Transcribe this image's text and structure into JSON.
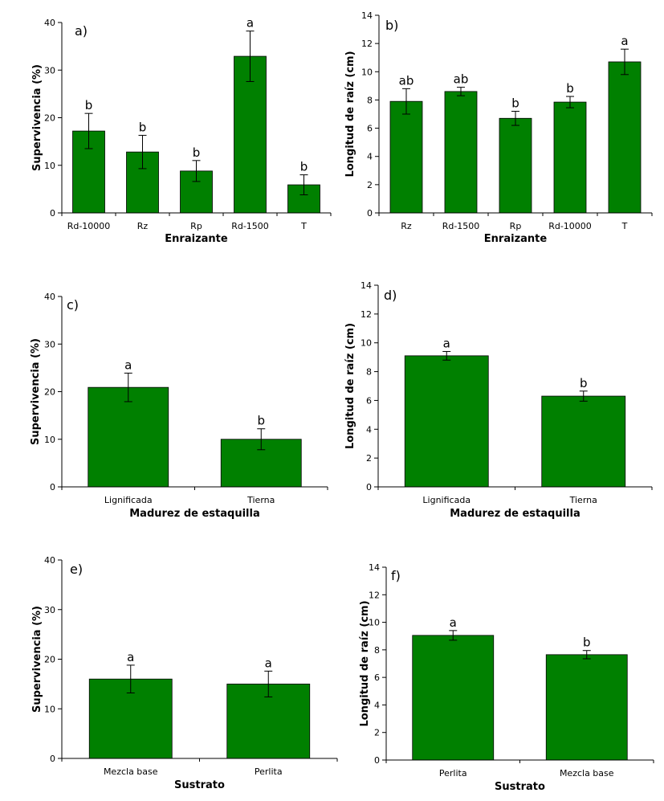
{
  "colors": {
    "bar": "#008000",
    "axis": "#000000"
  },
  "chart_data": [
    {
      "panel": "a)",
      "type": "bar",
      "categories": [
        "Rd-10000",
        "Rz",
        "Rp",
        "Rd-1500",
        "T"
      ],
      "values": [
        17.2,
        12.8,
        8.8,
        32.9,
        5.9
      ],
      "errors": [
        3.7,
        3.5,
        2.2,
        5.3,
        2.1
      ],
      "significance": [
        "b",
        "b",
        "b",
        "a",
        "b"
      ],
      "xlabel": "Enraizante",
      "ylabel": "Supervivencia (%)",
      "ylim": [
        0,
        40
      ],
      "yticks": [
        0,
        10,
        20,
        30,
        40
      ]
    },
    {
      "panel": "b)",
      "type": "bar",
      "categories": [
        "Rz",
        "Rd-1500",
        "Rp",
        "Rd-10000",
        "T"
      ],
      "values": [
        7.9,
        8.6,
        6.7,
        7.85,
        10.7
      ],
      "errors": [
        0.9,
        0.3,
        0.5,
        0.4,
        0.9
      ],
      "significance": [
        "ab",
        "ab",
        "b",
        "b",
        "a"
      ],
      "xlabel": "Enraizante",
      "ylabel": "Longitud de raíz (cm)",
      "ylim": [
        0,
        14
      ],
      "yticks": [
        0,
        2,
        4,
        6,
        8,
        10,
        12,
        14
      ]
    },
    {
      "panel": "c)",
      "type": "bar",
      "categories": [
        "Lignificada",
        "Tierna"
      ],
      "values": [
        20.9,
        10.0
      ],
      "errors": [
        3.0,
        2.2
      ],
      "significance": [
        "a",
        "b"
      ],
      "xlabel": "Madurez de estaquilla",
      "ylabel": "Supervivencia (%)",
      "ylim": [
        0,
        40
      ],
      "yticks": [
        0,
        10,
        20,
        30,
        40
      ]
    },
    {
      "panel": "d)",
      "type": "bar",
      "categories": [
        "Lignificada",
        "Tierna"
      ],
      "values": [
        9.1,
        6.3
      ],
      "errors": [
        0.3,
        0.35
      ],
      "significance": [
        "a",
        "b"
      ],
      "xlabel": "Madurez de estaquilla",
      "ylabel": "Longitud de raíz (cm)",
      "ylim": [
        0,
        14
      ],
      "yticks": [
        0,
        2,
        4,
        6,
        8,
        10,
        12,
        14
      ]
    },
    {
      "panel": "e)",
      "type": "bar",
      "categories": [
        "Mezcla base",
        "Perlita"
      ],
      "values": [
        16.0,
        15.0
      ],
      "errors": [
        2.8,
        2.6
      ],
      "significance": [
        "a",
        "a"
      ],
      "xlabel": "Sustrato",
      "ylabel": "Supervivencia (%)",
      "ylim": [
        0,
        40
      ],
      "yticks": [
        0,
        10,
        20,
        30,
        40
      ]
    },
    {
      "panel": "f)",
      "type": "bar",
      "categories": [
        "Perlita",
        "Mezcla base"
      ],
      "values": [
        9.05,
        7.65
      ],
      "errors": [
        0.35,
        0.3
      ],
      "significance": [
        "a",
        "b"
      ],
      "xlabel": "Sustrato",
      "ylabel": "Longitud de raíz (cm)",
      "ylim": [
        0,
        14
      ],
      "yticks": [
        0,
        2,
        4,
        6,
        8,
        10,
        12,
        14
      ]
    }
  ]
}
